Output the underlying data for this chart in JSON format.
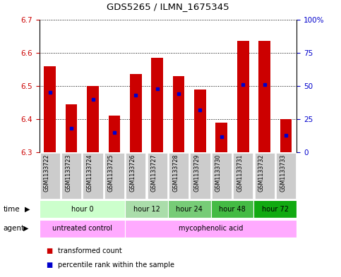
{
  "title": "GDS5265 / ILMN_1675345",
  "samples": [
    "GSM1133722",
    "GSM1133723",
    "GSM1133724",
    "GSM1133725",
    "GSM1133726",
    "GSM1133727",
    "GSM1133728",
    "GSM1133729",
    "GSM1133730",
    "GSM1133731",
    "GSM1133732",
    "GSM1133733"
  ],
  "transformed_counts": [
    6.56,
    6.445,
    6.5,
    6.41,
    6.535,
    6.585,
    6.53,
    6.49,
    6.39,
    6.635,
    6.635,
    6.4
  ],
  "percentile_ranks": [
    45,
    18,
    40,
    15,
    43,
    48,
    44,
    32,
    12,
    51,
    51,
    13
  ],
  "ylim_left": [
    6.3,
    6.7
  ],
  "ylim_right": [
    0,
    100
  ],
  "yticks_left": [
    6.3,
    6.4,
    6.5,
    6.6,
    6.7
  ],
  "yticks_right": [
    0,
    25,
    50,
    75,
    100
  ],
  "ytick_labels_right": [
    "0",
    "25",
    "50",
    "75",
    "100%"
  ],
  "bar_bottom": 6.3,
  "bar_color": "#cc0000",
  "percentile_color": "#0000cc",
  "time_groups": [
    {
      "label": "hour 0",
      "start": 0,
      "end": 4,
      "color": "#ccffcc"
    },
    {
      "label": "hour 12",
      "start": 4,
      "end": 6,
      "color": "#aaddaa"
    },
    {
      "label": "hour 24",
      "start": 6,
      "end": 8,
      "color": "#77cc77"
    },
    {
      "label": "hour 48",
      "start": 8,
      "end": 10,
      "color": "#44bb44"
    },
    {
      "label": "hour 72",
      "start": 10,
      "end": 12,
      "color": "#11aa11"
    }
  ],
  "agent_groups": [
    {
      "label": "untreated control",
      "start": 0,
      "end": 4,
      "color": "#ffaaff"
    },
    {
      "label": "mycophenolic acid",
      "start": 4,
      "end": 12,
      "color": "#ffaaff"
    }
  ],
  "legend_red": "transformed count",
  "legend_blue": "percentile rank within the sample",
  "bar_width": 0.55
}
